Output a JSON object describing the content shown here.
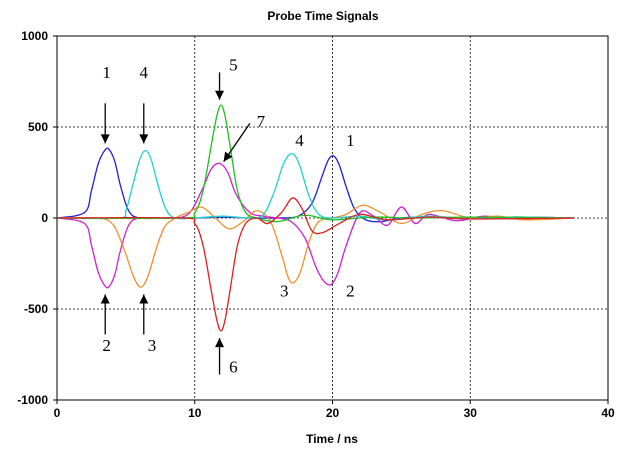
{
  "chart_data": {
    "type": "line",
    "title": "Probe Time Signals",
    "xlabel": "Time / ns",
    "ylabel": "",
    "xlim": [
      0,
      40
    ],
    "ylim": [
      -1000,
      1000
    ],
    "x_ticks": [
      0,
      10,
      20,
      30,
      40
    ],
    "y_ticks": [
      1000,
      500,
      0,
      -500,
      -1000
    ],
    "x_tick_labels": [
      "0",
      "10",
      "20",
      "30",
      "40"
    ],
    "y_tick_labels": [
      "1000",
      "500",
      "0",
      "-500",
      "-1000"
    ],
    "grid": "dotted",
    "legend": "none",
    "series": [
      {
        "color": "#2020d0",
        "x": [
          0,
          2,
          2.5,
          3,
          3.5,
          3.8,
          4.2,
          4.6,
          5.2,
          6,
          8,
          10,
          12,
          14,
          16,
          17.5,
          18.5,
          19.2,
          19.7,
          20.1,
          20.5,
          21,
          21.6,
          22.4,
          23.5,
          25,
          27,
          30,
          33,
          37.5
        ],
        "y": [
          0,
          30,
          150,
          300,
          375,
          375,
          310,
          180,
          40,
          0,
          0,
          0,
          5,
          0,
          0,
          10,
          80,
          220,
          320,
          340,
          290,
          170,
          50,
          -10,
          -20,
          0,
          5,
          -5,
          5,
          0
        ]
      },
      {
        "color": "#d020d0",
        "x": [
          0,
          2,
          2.5,
          3,
          3.5,
          3.8,
          4.2,
          4.6,
          5.2,
          6,
          8,
          9.5,
          10.5,
          11.2,
          11.8,
          12.4,
          13,
          14,
          15,
          16,
          17,
          18,
          18.8,
          19.4,
          19.9,
          20.4,
          21,
          22,
          23,
          24,
          25,
          26,
          27,
          29,
          31,
          33,
          37.5
        ],
        "y": [
          0,
          -30,
          -150,
          -300,
          -375,
          -375,
          -310,
          -180,
          -40,
          0,
          0,
          20,
          150,
          270,
          300,
          250,
          130,
          30,
          10,
          0,
          -20,
          -110,
          -270,
          -350,
          -365,
          -300,
          -150,
          30,
          10,
          -40,
          60,
          -30,
          20,
          -15,
          10,
          -5,
          0
        ]
      },
      {
        "color": "#f09030",
        "x": [
          0,
          3,
          4,
          4.5,
          5,
          5.6,
          6.1,
          6.6,
          7.2,
          7.8,
          8.6,
          9.5,
          10.5,
          11.5,
          12.5,
          13.5,
          14.5,
          15.5,
          16.3,
          16.8,
          17.2,
          17.7,
          18.3,
          19,
          20,
          21,
          22.2,
          23.5,
          25,
          26.5,
          28,
          30,
          32,
          34,
          37.5
        ],
        "y": [
          0,
          0,
          -30,
          -100,
          -200,
          -330,
          -380,
          -320,
          -170,
          -50,
          0,
          30,
          60,
          0,
          -60,
          -20,
          40,
          -20,
          -200,
          -330,
          -355,
          -290,
          -130,
          -20,
          0,
          20,
          70,
          30,
          -30,
          20,
          40,
          0,
          10,
          -10,
          0
        ]
      },
      {
        "color": "#20d0d0",
        "x": [
          0,
          4.5,
          5,
          5.5,
          6,
          6.4,
          6.8,
          7.3,
          7.9,
          8.6,
          10,
          12,
          14,
          15,
          15.8,
          16.4,
          16.9,
          17.3,
          17.7,
          18.3,
          19,
          20,
          22,
          24,
          27,
          30,
          33,
          37.5
        ],
        "y": [
          0,
          0,
          40,
          180,
          320,
          370,
          330,
          190,
          50,
          0,
          0,
          10,
          0,
          20,
          150,
          290,
          350,
          340,
          270,
          120,
          20,
          0,
          10,
          -10,
          10,
          -5,
          5,
          0
        ]
      },
      {
        "color": "#20c020",
        "x": [
          0,
          9,
          10,
          10.6,
          11.2,
          11.6,
          11.9,
          12.2,
          12.6,
          13.1,
          13.7,
          14.5,
          16,
          18,
          20,
          23,
          26,
          30,
          37.5
        ],
        "y": [
          0,
          0,
          30,
          150,
          400,
          560,
          620,
          560,
          380,
          150,
          30,
          0,
          -20,
          15,
          -10,
          5,
          0,
          5,
          0
        ]
      },
      {
        "color": "#e02020",
        "x": [
          0,
          9,
          10,
          10.6,
          11.2,
          11.6,
          11.9,
          12.2,
          12.6,
          13.1,
          13.7,
          14.5,
          15.3,
          16.3,
          17.1,
          17.8,
          18.5,
          19.3,
          20.5,
          22,
          24,
          27,
          30,
          37.5
        ],
        "y": [
          0,
          0,
          -30,
          -150,
          -400,
          -560,
          -620,
          -560,
          -380,
          -150,
          -30,
          0,
          -30,
          30,
          110,
          50,
          -70,
          -80,
          -30,
          20,
          -10,
          5,
          -5,
          0
        ]
      }
    ],
    "annotations": [
      {
        "text": "1",
        "x": 3.6,
        "y": 770
      },
      {
        "text": "4",
        "x": 6.3,
        "y": 770
      },
      {
        "text": "5",
        "x": 12.8,
        "y": 810
      },
      {
        "text": "7",
        "x": 14.8,
        "y": 500
      },
      {
        "text": "4",
        "x": 17.6,
        "y": 395
      },
      {
        "text": "1",
        "x": 21.3,
        "y": 395
      },
      {
        "text": "2",
        "x": 3.6,
        "y": -730
      },
      {
        "text": "3",
        "x": 6.9,
        "y": -730
      },
      {
        "text": "6",
        "x": 12.8,
        "y": -850
      },
      {
        "text": "3",
        "x": 16.5,
        "y": -430
      },
      {
        "text": "2",
        "x": 21.3,
        "y": -430
      }
    ],
    "arrows": [
      {
        "from": [
          3.5,
          630
        ],
        "to": [
          3.5,
          410
        ]
      },
      {
        "from": [
          6.3,
          630
        ],
        "to": [
          6.3,
          410
        ]
      },
      {
        "from": [
          11.8,
          800
        ],
        "to": [
          11.8,
          650
        ]
      },
      {
        "from": [
          14.0,
          520
        ],
        "to": [
          12.1,
          310
        ]
      },
      {
        "from": [
          3.5,
          -640
        ],
        "to": [
          3.5,
          -420
        ]
      },
      {
        "from": [
          6.3,
          -640
        ],
        "to": [
          6.3,
          -420
        ]
      },
      {
        "from": [
          11.8,
          -860
        ],
        "to": [
          11.8,
          -660
        ]
      }
    ]
  }
}
